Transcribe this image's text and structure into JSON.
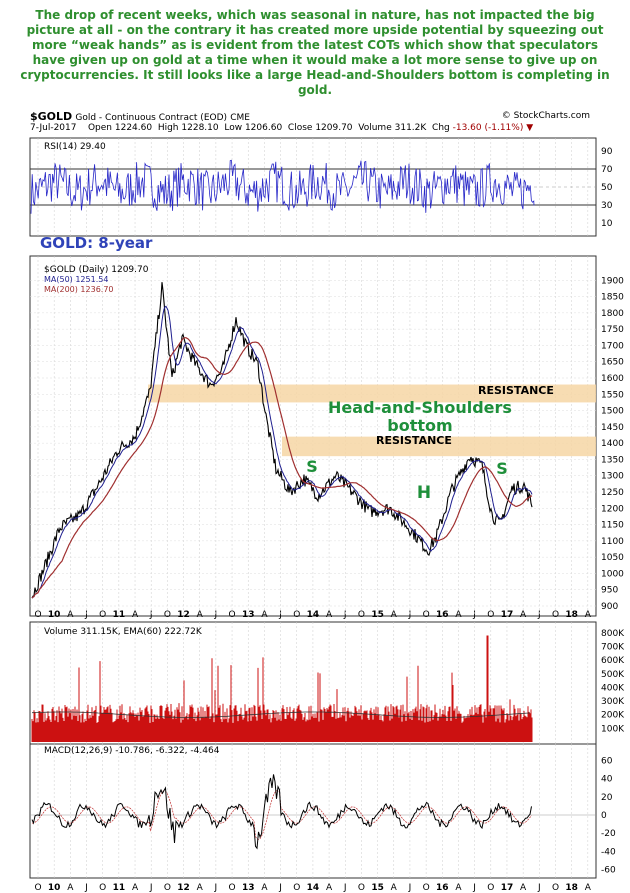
{
  "caption": "The drop of recent weeks, which was seasonal in nature, has not impacted the big picture at all - on the contrary it has created more upside potential by squeezing out more “weak hands” as is evident from the latest COTs which show that speculators have given up on gold at a time when it would make a lot more sense to give up on cryptocurrencies. It still looks like a large Head-and-Shoulders bottom is completing in gold.",
  "header": {
    "symbol": "$GOLD",
    "name": "Gold - Continuous Contract (EOD)",
    "exchange": "CME",
    "source": "© StockCharts.com",
    "date": "7-Jul-2017",
    "open_label": "Open",
    "open": "1224.60",
    "high_label": "High",
    "high": "1228.10",
    "low_label": "Low",
    "low": "1206.60",
    "close_label": "Close",
    "close": "1209.70",
    "volume_label": "Volume",
    "volume": "311.2K",
    "chg_label": "Chg",
    "chg": "-13.60 (-1.11%)"
  },
  "colors": {
    "caption": "#2f8f2f",
    "price_line": "#000000",
    "ma50": "#1f1f8f",
    "ma200": "#a03030",
    "rsi": "#2727c8",
    "volume": "#cc1111",
    "resistance_band": "#f6d6a4",
    "annotation_green": "#1e8f3a",
    "title_blue": "#2f43b8",
    "panel_bg": "#ffffff"
  },
  "chart_data": [
    {
      "type": "line",
      "panel": "RSI",
      "legend": "RSI(14) 29.40",
      "ylim": [
        0,
        100
      ],
      "yticks": [
        10,
        30,
        50,
        70,
        90
      ],
      "reference_lines": [
        30,
        70
      ],
      "last_value": 29.4
    },
    {
      "type": "line",
      "panel": "price",
      "title": "GOLD: 8-year",
      "series": [
        {
          "name": "$GOLD (Daily) 1209.70",
          "x": [
            "O",
            "10",
            "A",
            "11",
            "J",
            "12",
            "J",
            "13",
            "A",
            "14",
            "J",
            "15",
            "J",
            "16",
            "J",
            "17",
            "J"
          ],
          "values": [
            930,
            1130,
            1250,
            1350,
            1550,
            1700,
            1590,
            1660,
            1280,
            1250,
            1310,
            1200,
            1100,
            1080,
            1320,
            1250,
            1210
          ]
        },
        {
          "name": "MA(50) 1251.54"
        },
        {
          "name": "MA(200) 1236.70"
        }
      ],
      "ylim": [
        900,
        1950
      ],
      "yticks": [
        900,
        950,
        1000,
        1050,
        1100,
        1150,
        1200,
        1250,
        1300,
        1350,
        1400,
        1450,
        1500,
        1550,
        1600,
        1650,
        1700,
        1750,
        1800,
        1850,
        1900
      ],
      "xticks": [
        "O",
        "10",
        "A",
        "J",
        "O",
        "11",
        "A",
        "J",
        "O",
        "12",
        "A",
        "J",
        "O",
        "13",
        "A",
        "J",
        "O",
        "14",
        "A",
        "J",
        "O",
        "15",
        "A",
        "J",
        "O",
        "16",
        "A",
        "J",
        "O",
        "17",
        "A",
        "J",
        "O",
        "18",
        "A"
      ],
      "annotations": {
        "resistance_upper": "RESISTANCE",
        "resistance_lower": "RESISTANCE",
        "pattern_line1": "Head-and-Shoulders",
        "pattern_line2": "bottom",
        "left_shoulder": "S",
        "head": "H",
        "right_shoulder": "S"
      },
      "resistance_bands": [
        [
          1525,
          1580
        ],
        [
          1360,
          1420
        ]
      ]
    },
    {
      "type": "bar",
      "panel": "volume",
      "legend": "Volume 311.15K, EMA(60) 222.72K",
      "yticks": [
        "100K",
        "200K",
        "300K",
        "400K",
        "500K",
        "600K",
        "700K",
        "800K"
      ],
      "ylim": [
        0,
        850
      ]
    },
    {
      "type": "line",
      "panel": "MACD",
      "legend": "MACD(12,26,9) -10.786, -6.322, -4.464",
      "ylim": [
        -65,
        65
      ],
      "yticks": [
        -60,
        -40,
        -20,
        0,
        20,
        40,
        60
      ]
    }
  ]
}
